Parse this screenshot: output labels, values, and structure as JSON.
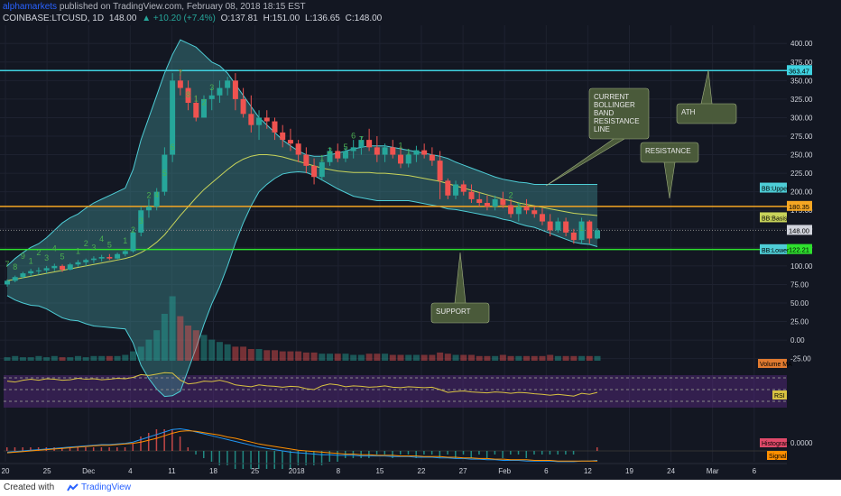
{
  "header": {
    "author": "alphamarkets",
    "published": "published on TradingView.com, February 08, 2018 18:15 EST",
    "symbol": "COINBASE:LTCUSD, 1D",
    "last": "148.00",
    "change": "▲ +10.20 (+7.4%)",
    "open": "O:137.81",
    "high": "H:151.00",
    "low": "L:136.65",
    "close": "C:148.00"
  },
  "footer": {
    "created_with": "Created with",
    "brand": "TradingView"
  },
  "colors": {
    "background": "#131722",
    "up": "#26a69a",
    "down": "#ef5350",
    "bb_fill": "#3d8a8e",
    "bb_band": "#4ecdd6",
    "bb_basis": "#c8d45a",
    "cyan_line": "#3fd2e0",
    "orange_line": "#f5a623",
    "green_line": "#2ee02e",
    "td_up": "#4caf50",
    "td_down": "#ef5350",
    "rsi": "#d8c242",
    "macd": "#2196f3",
    "signal": "#ff8f00"
  },
  "chart_data": {
    "type": "candlestick",
    "x_tick_labels": [
      "20",
      "25",
      "Dec",
      "4",
      "11",
      "18",
      "25",
      "2018",
      "8",
      "15",
      "22",
      "27",
      "Feb",
      "6",
      "12",
      "19",
      "24",
      "Mar",
      "6"
    ],
    "y_tick_labels": [
      "400.00",
      "375.00",
      "350.00",
      "325.00",
      "300.00",
      "275.00",
      "250.00",
      "225.00",
      "200.00",
      "175.00",
      "150.00",
      "125.00",
      "100.00",
      "75.00",
      "50.00",
      "25.00",
      "0.00",
      "-25.00"
    ],
    "ylim": [
      -40,
      410
    ],
    "candles": [
      [
        75,
        82,
        72,
        80
      ],
      [
        80,
        87,
        78,
        85
      ],
      [
        85,
        92,
        83,
        90
      ],
      [
        90,
        96,
        86,
        93
      ],
      [
        93,
        98,
        88,
        94
      ],
      [
        94,
        100,
        90,
        97
      ],
      [
        97,
        103,
        93,
        100
      ],
      [
        100,
        102,
        92,
        95
      ],
      [
        95,
        104,
        94,
        102
      ],
      [
        102,
        108,
        99,
        105
      ],
      [
        105,
        110,
        100,
        108
      ],
      [
        108,
        113,
        104,
        110
      ],
      [
        110,
        115,
        106,
        112
      ],
      [
        112,
        116,
        108,
        110
      ],
      [
        110,
        118,
        109,
        116
      ],
      [
        116,
        122,
        113,
        120
      ],
      [
        120,
        150,
        118,
        145
      ],
      [
        145,
        180,
        140,
        175
      ],
      [
        175,
        190,
        165,
        180
      ],
      [
        180,
        205,
        175,
        200
      ],
      [
        200,
        260,
        195,
        250
      ],
      [
        250,
        360,
        240,
        350
      ],
      [
        350,
        365,
        330,
        340
      ],
      [
        340,
        350,
        310,
        320
      ],
      [
        320,
        330,
        295,
        300
      ],
      [
        300,
        330,
        300,
        325
      ],
      [
        325,
        340,
        310,
        330
      ],
      [
        330,
        350,
        320,
        340
      ],
      [
        340,
        355,
        330,
        350
      ],
      [
        350,
        360,
        310,
        325
      ],
      [
        325,
        340,
        300,
        305
      ],
      [
        305,
        330,
        280,
        290
      ],
      [
        290,
        310,
        270,
        300
      ],
      [
        300,
        310,
        285,
        295
      ],
      [
        295,
        300,
        270,
        280
      ],
      [
        280,
        290,
        260,
        270
      ],
      [
        270,
        285,
        255,
        265
      ],
      [
        265,
        270,
        240,
        250
      ],
      [
        250,
        260,
        225,
        235
      ],
      [
        235,
        245,
        210,
        220
      ],
      [
        220,
        245,
        215,
        240
      ],
      [
        240,
        260,
        235,
        255
      ],
      [
        255,
        265,
        240,
        245
      ],
      [
        245,
        260,
        240,
        255
      ],
      [
        255,
        270,
        245,
        260
      ],
      [
        260,
        275,
        250,
        270
      ],
      [
        270,
        285,
        255,
        260
      ],
      [
        260,
        275,
        240,
        250
      ],
      [
        250,
        265,
        240,
        260
      ],
      [
        260,
        270,
        245,
        250
      ],
      [
        250,
        262,
        232,
        238
      ],
      [
        238,
        255,
        233,
        250
      ],
      [
        250,
        262,
        240,
        256
      ],
      [
        256,
        265,
        245,
        250
      ],
      [
        250,
        260,
        235,
        242
      ],
      [
        242,
        255,
        190,
        215
      ],
      [
        215,
        218,
        190,
        195
      ],
      [
        195,
        215,
        190,
        210
      ],
      [
        210,
        215,
        195,
        200
      ],
      [
        200,
        210,
        185,
        190
      ],
      [
        190,
        200,
        180,
        185
      ],
      [
        185,
        195,
        175,
        180
      ],
      [
        180,
        195,
        175,
        190
      ],
      [
        190,
        200,
        178,
        182
      ],
      [
        182,
        190,
        165,
        170
      ],
      [
        170,
        185,
        160,
        180
      ],
      [
        180,
        190,
        170,
        175
      ],
      [
        175,
        180,
        165,
        170
      ],
      [
        170,
        178,
        155,
        160
      ],
      [
        160,
        170,
        140,
        148
      ],
      [
        148,
        165,
        145,
        160
      ],
      [
        160,
        165,
        140,
        145
      ],
      [
        145,
        150,
        130,
        135
      ],
      [
        135,
        165,
        130,
        160
      ],
      [
        160,
        162,
        130,
        137
      ],
      [
        137,
        151,
        136,
        148
      ]
    ],
    "bollinger": {
      "upper_line": [
        100,
        110,
        118,
        125,
        130,
        138,
        148,
        158,
        165,
        170,
        178,
        185,
        190,
        195,
        200,
        205,
        230,
        270,
        300,
        330,
        360,
        385,
        405,
        400,
        395,
        385,
        375,
        370,
        360,
        345,
        330,
        315,
        300,
        290,
        280,
        270,
        262,
        255,
        250,
        248,
        248,
        250,
        252,
        255,
        258,
        260,
        262,
        262,
        262,
        260,
        258,
        256,
        254,
        252,
        250,
        248,
        245,
        240,
        236,
        232,
        228,
        224,
        220,
        217,
        215,
        213,
        212,
        210,
        210,
        210,
        210,
        210,
        210,
        210,
        210,
        210
      ],
      "basis_line": [
        80,
        82,
        84,
        86,
        88,
        90,
        92,
        94,
        96,
        98,
        100,
        102,
        104,
        106,
        108,
        110,
        113,
        118,
        124,
        132,
        142,
        155,
        168,
        180,
        192,
        203,
        212,
        221,
        230,
        238,
        244,
        248,
        250,
        250,
        249,
        247,
        244,
        241,
        238,
        235,
        232,
        230,
        228,
        227,
        226,
        226,
        226,
        225,
        225,
        224,
        223,
        222,
        220,
        218,
        216,
        214,
        211,
        208,
        205,
        202,
        199,
        196,
        193,
        190,
        188,
        185,
        183,
        181,
        179,
        177,
        175,
        173,
        171,
        170,
        169,
        168
      ],
      "lower_line": [
        60,
        54,
        50,
        47,
        46,
        42,
        36,
        30,
        27,
        26,
        22,
        19,
        18,
        17,
        16,
        15,
        -4,
        -34,
        -52,
        -66,
        -76,
        -75,
        -69,
        -40,
        -11,
        21,
        49,
        72,
        100,
        131,
        158,
        181,
        200,
        210,
        218,
        224,
        226,
        227,
        226,
        222,
        216,
        210,
        204,
        199,
        194,
        192,
        190,
        188,
        188,
        188,
        188,
        188,
        186,
        184,
        182,
        180,
        177,
        176,
        174,
        172,
        170,
        168,
        166,
        163,
        161,
        157,
        154,
        152,
        148,
        144,
        140,
        136,
        132,
        130,
        129,
        126
      ]
    },
    "price_labels": {
      "level_363": "363.47",
      "bb_upper": "BB:Upper",
      "resistance_level": "180.35",
      "bb_basis": "BB:Basis",
      "last_price": "148.00",
      "bb_lower": "BB:Lower",
      "support_level": "122.21"
    },
    "levels": {
      "ath": 363.47,
      "resistance": 180.35,
      "support": 122.21
    },
    "annotations": [
      {
        "text": "CURRENT\nBOLLINGER\nBAND\nRESISTANCE\nLINE"
      },
      {
        "text": "ATH"
      },
      {
        "text": "RESISTANCE"
      },
      {
        "text": "SUPPORT"
      }
    ],
    "td_sequential_up_labels": [
      {
        "i": 0,
        "t": "7"
      },
      {
        "i": 1,
        "t": "8"
      },
      {
        "i": 2,
        "t": "9"
      },
      {
        "i": 3,
        "t": "1"
      },
      {
        "i": 4,
        "t": "2"
      },
      {
        "i": 5,
        "t": "3"
      },
      {
        "i": 6,
        "t": "4"
      },
      {
        "i": 7,
        "t": "5"
      },
      {
        "i": 9,
        "t": "1"
      },
      {
        "i": 10,
        "t": "2"
      },
      {
        "i": 11,
        "t": "3"
      },
      {
        "i": 12,
        "t": "4"
      },
      {
        "i": 13,
        "t": "5"
      },
      {
        "i": 15,
        "t": "1"
      },
      {
        "i": 16,
        "t": "2"
      },
      {
        "i": 17,
        "t": "3"
      },
      {
        "i": 18,
        "t": "2"
      },
      {
        "i": 19,
        "t": "4"
      },
      {
        "i": 20,
        "t": "5"
      },
      {
        "i": 21,
        "t": "6"
      },
      {
        "i": 22,
        "t": "7"
      },
      {
        "i": 23,
        "t": "8"
      },
      {
        "i": 24,
        "t": "1"
      },
      {
        "i": 25,
        "t": "2"
      },
      {
        "i": 26,
        "t": "3"
      },
      {
        "i": 40,
        "t": "1"
      },
      {
        "i": 41,
        "t": "2"
      },
      {
        "i": 43,
        "t": "5"
      },
      {
        "i": 44,
        "t": "6"
      },
      {
        "i": 45,
        "t": "7"
      },
      {
        "i": 50,
        "t": "1"
      },
      {
        "i": 51,
        "t": "1"
      },
      {
        "i": 64,
        "t": "2"
      },
      {
        "i": 65,
        "t": "3"
      },
      {
        "i": 73,
        "t": "1"
      }
    ],
    "volume": [
      3,
      4,
      3,
      3,
      4,
      3,
      4,
      3,
      3,
      4,
      3,
      4,
      4,
      4,
      4,
      5,
      8,
      12,
      18,
      26,
      40,
      55,
      38,
      30,
      26,
      22,
      18,
      16,
      14,
      12,
      12,
      10,
      10,
      9,
      9,
      8,
      8,
      8,
      7,
      7,
      6,
      6,
      6,
      6,
      5,
      5,
      6,
      6,
      6,
      5,
      5,
      5,
      5,
      5,
      5,
      7,
      6,
      5,
      5,
      5,
      4,
      4,
      4,
      5,
      4,
      4,
      4,
      4,
      4,
      5,
      4,
      4,
      4,
      4,
      4,
      4
    ],
    "volume_ma_label": "Volume MA",
    "rsi": [
      68,
      66,
      70,
      72,
      70,
      73,
      72,
      70,
      71,
      74,
      72,
      73,
      71,
      72,
      74,
      73,
      76,
      82,
      80,
      83,
      86,
      85,
      70,
      62,
      64,
      68,
      67,
      70,
      66,
      60,
      58,
      56,
      60,
      58,
      57,
      55,
      57,
      56,
      52,
      50,
      58,
      62,
      60,
      56,
      58,
      57,
      55,
      56,
      58,
      55,
      54,
      56,
      55,
      54,
      55,
      50,
      44,
      46,
      47,
      45,
      44,
      43,
      45,
      44,
      42,
      44,
      43,
      41,
      40,
      38,
      40,
      38,
      36,
      42,
      40,
      44
    ],
    "rsi_label": "RSI",
    "rsi_ticks": [
      "75.0000",
      "50.0000",
      "25.0000"
    ],
    "macd_labels": {
      "histogram": "Histogram",
      "signal": "Signal",
      "zero": "0.0000"
    },
    "macd_line": [
      -2,
      -1,
      0,
      1,
      2,
      3,
      4,
      5,
      6,
      7,
      8,
      9,
      10,
      10,
      11,
      12,
      14,
      18,
      22,
      26,
      30,
      34,
      35,
      33,
      30,
      27,
      24,
      21,
      18,
      15,
      12,
      9,
      6,
      4,
      2,
      0,
      -2,
      -3,
      -4,
      -5,
      -6,
      -6,
      -7,
      -7,
      -7,
      -8,
      -8,
      -8,
      -8,
      -9,
      -9,
      -9,
      -10,
      -10,
      -10,
      -11,
      -11,
      -12,
      -12,
      -13,
      -13,
      -14,
      -14,
      -15,
      -15,
      -15,
      -16,
      -16,
      -16,
      -16,
      -17,
      -17,
      -17,
      -16,
      -16,
      -15
    ],
    "signal_line": [
      -3,
      -2,
      -1,
      0,
      1,
      2,
      3,
      4,
      5,
      6,
      7,
      8,
      9,
      9,
      10,
      11,
      12,
      14,
      17,
      20,
      24,
      28,
      31,
      32,
      31,
      29,
      27,
      25,
      22,
      20,
      17,
      14,
      11,
      9,
      7,
      5,
      3,
      1,
      0,
      -1,
      -2,
      -3,
      -4,
      -5,
      -5,
      -6,
      -6,
      -7,
      -7,
      -7,
      -8,
      -8,
      -8,
      -9,
      -9,
      -9,
      -10,
      -10,
      -11,
      -11,
      -12,
      -12,
      -13,
      -13,
      -14,
      -14,
      -14,
      -15,
      -15,
      -15,
      -16,
      -16,
      -16,
      -16,
      -16,
      -16
    ]
  }
}
